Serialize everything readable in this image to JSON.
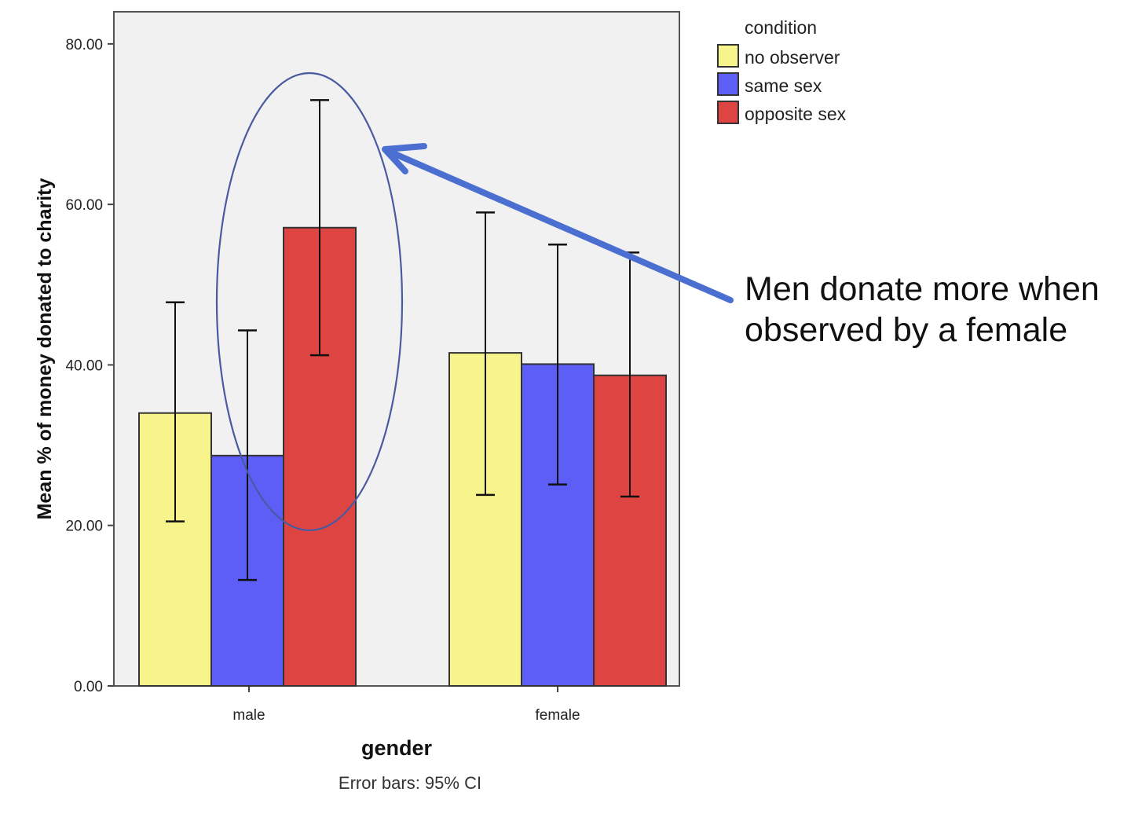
{
  "chart_data": {
    "type": "bar",
    "categories": [
      "male",
      "female"
    ],
    "series": [
      {
        "name": "no observer",
        "color": "#f8f48c",
        "values": [
          34.0,
          41.5
        ],
        "ci_low": [
          20.5,
          23.8
        ],
        "ci_high": [
          47.8,
          59.0
        ]
      },
      {
        "name": "same sex",
        "color": "#5c5ef5",
        "values": [
          28.7,
          40.1
        ],
        "ci_low": [
          13.2,
          25.1
        ],
        "ci_high": [
          44.3,
          55.0
        ]
      },
      {
        "name": "opposite sex",
        "color": "#dd4442",
        "values": [
          57.1,
          38.7
        ],
        "ci_low": [
          41.2,
          23.6
        ],
        "ci_high": [
          73.0,
          54.0
        ]
      }
    ],
    "xlabel": "gender",
    "ylabel": "Mean % of money donated to charity",
    "ylim": [
      0,
      84
    ],
    "yticks": [
      "0.00",
      "20.00",
      "40.00",
      "60.00",
      "80.00"
    ],
    "legend_title": "condition",
    "legend_position": "top-right",
    "note": "Error bars: 95% CI",
    "annotation": {
      "lines": [
        "Men donate more when",
        "observed by a female"
      ],
      "arrow_color": "#4b6fd1",
      "highlight": "opposite sex bar for male"
    },
    "plot_background": "#f1f1f1",
    "grid": false
  }
}
